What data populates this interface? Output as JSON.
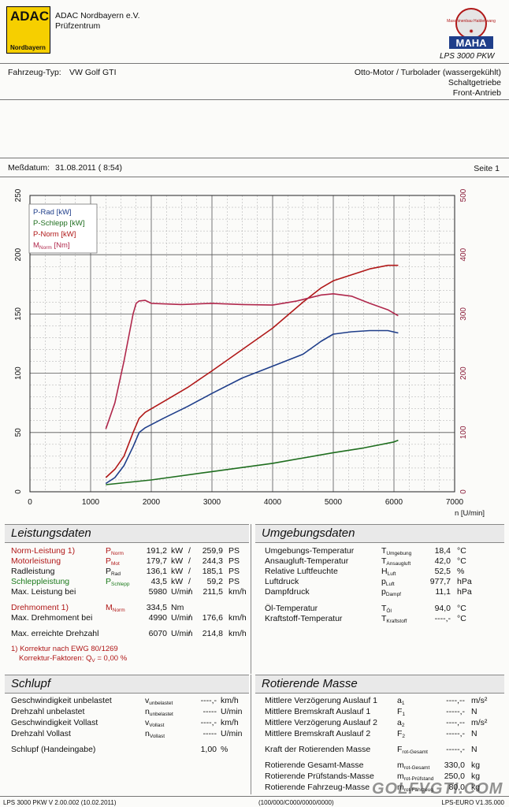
{
  "header": {
    "logo_text": "ADAC",
    "logo_sub": "Nordbayern",
    "org_name": "ADAC Nordbayern e.V.",
    "org_sub": "Prüfzentrum",
    "maha_text": "MAHA",
    "maha_ring_text": "Maschinenbau Haldenwang",
    "model": "LPS 3000 PKW"
  },
  "vehicle": {
    "label": "Fahrzeug-Typ:",
    "value": "VW Golf GTI",
    "engine": "Otto-Motor / Turbolader (wassergekühlt)",
    "gearbox": "Schaltgetriebe",
    "drive": "Front-Antrieb"
  },
  "measure": {
    "date_label": "Meßdatum:",
    "date_value": "31.08.2011 ( 8:54)",
    "page": "Seite 1"
  },
  "chart_data": {
    "type": "line",
    "xlabel": "n [U/min]",
    "xlim": [
      0,
      7000
    ],
    "x_ticks": [
      "0",
      "1000",
      "2000",
      "3000",
      "4000",
      "5000",
      "6000",
      "7000"
    ],
    "ylim_left": [
      0,
      250
    ],
    "y_ticks_left": [
      "0",
      "50",
      "100",
      "150",
      "200",
      "250"
    ],
    "ylim_right": [
      0,
      500
    ],
    "y_ticks_right": [
      "0",
      "100",
      "200",
      "300",
      "400",
      "500"
    ],
    "legend": [
      "P-Rad [kW]",
      "P-Schlepp [kW]",
      "P-Norm [kW]",
      "M"
    ],
    "legend_norm_sub": "Norm",
    "legend_unit": "[Nm]",
    "series": [
      {
        "name": "P-Rad [kW]",
        "color": "#1f3e8a",
        "axis": "left",
        "x": [
          1250,
          1400,
          1550,
          1700,
          1800,
          1900,
          2200,
          2600,
          3000,
          3500,
          4000,
          4500,
          4800,
          5000,
          5300,
          5600,
          5900,
          6070
        ],
        "y": [
          7,
          12,
          22,
          38,
          50,
          54,
          62,
          72,
          83,
          96,
          106,
          116,
          127,
          133,
          135,
          136,
          136,
          134
        ]
      },
      {
        "name": "P-Schlepp [kW]",
        "color": "#1f6e1f",
        "axis": "left",
        "x": [
          1250,
          2000,
          3000,
          4000,
          5000,
          5500,
          6000,
          6070
        ],
        "y": [
          6,
          10,
          17,
          24,
          33,
          37,
          42,
          43.5
        ]
      },
      {
        "name": "P-Norm [kW]",
        "color": "#b01818",
        "axis": "left",
        "x": [
          1250,
          1400,
          1550,
          1700,
          1800,
          1900,
          2200,
          2600,
          3000,
          3500,
          4000,
          4500,
          4800,
          5000,
          5300,
          5600,
          5900,
          6070
        ],
        "y": [
          12,
          19,
          30,
          50,
          62,
          67,
          76,
          88,
          102,
          120,
          138,
          160,
          172,
          178,
          183,
          188,
          191,
          191
        ]
      },
      {
        "name": "M Norm [Nm]",
        "color": "#b0284c",
        "axis": "right",
        "x": [
          1250,
          1400,
          1550,
          1700,
          1750,
          1800,
          1900,
          2000,
          2500,
          3000,
          3500,
          4000,
          4400,
          4800,
          5000,
          5300,
          5600,
          5900,
          6070
        ],
        "y": [
          106,
          150,
          220,
          300,
          318,
          322,
          323,
          318,
          316,
          318,
          316,
          315,
          322,
          332,
          334,
          330,
          318,
          307,
          297
        ]
      }
    ]
  },
  "leistung": {
    "title": "Leistungsdaten",
    "rows": [
      {
        "label": "Norm-Leistung 1)",
        "sym": "P",
        "sub": "Norm",
        "v1": "191,2",
        "u1": "kW",
        "v2": "259,9",
        "u2": "PS",
        "color": "red"
      },
      {
        "label": "Motorleistung",
        "sym": "P",
        "sub": "Mot",
        "v1": "179,7",
        "u1": "kW",
        "v2": "244,3",
        "u2": "PS",
        "color": "red"
      },
      {
        "label": "Radleistung",
        "sym": "P",
        "sub": "Rad",
        "v1": "136,1",
        "u1": "kW",
        "v2": "185,1",
        "u2": "PS",
        "color": "black"
      },
      {
        "label": "Schleppleistung",
        "sym": "P",
        "sub": "Schlepp",
        "v1": "43,5",
        "u1": "kW",
        "v2": "59,2",
        "u2": "PS",
        "color": "green"
      }
    ],
    "max_label": "Max. Leistung bei",
    "max_v1": "5980",
    "max_u1": "U/min",
    "max_v2": "211,5",
    "max_u2": "km/h",
    "dm_label": "Drehmoment 1)",
    "dm_sym": "M",
    "dm_sub": "Norm",
    "dm_v": "334,5",
    "dm_u": "Nm",
    "maxdm_label": "Max. Drehmoment bei",
    "maxdm_v1": "4990",
    "maxdm_u1": "U/min",
    "maxdm_v2": "176,6",
    "maxdm_u2": "km/h",
    "maxdz_label": "Max. erreichte Drehzahl",
    "maxdz_v1": "6070",
    "maxdz_u1": "U/min",
    "maxdz_v2": "214,8",
    "maxdz_u2": "km/h",
    "note1": "1) Korrektur nach EWG 80/1269",
    "note2_pre": "Korrektur-Faktoren: Q",
    "note2_sub": "V",
    "note2_post": " =    0,00 %"
  },
  "umgebung": {
    "title": "Umgebungsdaten",
    "rows": [
      {
        "label": "Umgebungs-Temperatur",
        "sym": "T",
        "sub": "Umgebung",
        "val": "18,4",
        "unit": "°C"
      },
      {
        "label": "Ansaugluft-Temperatur",
        "sym": "T",
        "sub": "Ansaugluft",
        "val": "42,0",
        "unit": "°C"
      },
      {
        "label": "Relative Luftfeuchte",
        "sym": "H",
        "sub": "Luft",
        "val": "52,5",
        "unit": "%"
      },
      {
        "label": "Luftdruck",
        "sym": "p",
        "sub": "Luft",
        "val": "977,7",
        "unit": "hPa"
      },
      {
        "label": "Dampfdruck",
        "sym": "p",
        "sub": "Dampf",
        "val": "11,1",
        "unit": "hPa"
      },
      {
        "label": "Öl-Temperatur",
        "sym": "T",
        "sub": "Öl",
        "val": "94,0",
        "unit": "°C"
      },
      {
        "label": "Kraftstoff-Temperatur",
        "sym": "T",
        "sub": "Kraftstoff",
        "val": "----,-",
        "unit": "°C"
      }
    ]
  },
  "schlupf": {
    "title": "Schlupf",
    "rows": [
      {
        "label": "Geschwindigkeit unbelastet",
        "sym": "v",
        "sub": "unbelastet",
        "val": "----,-",
        "unit": "km/h"
      },
      {
        "label": "Drehzahl unbelastet",
        "sym": "n",
        "sub": "unbelastet",
        "val": "-----",
        "unit": "U/min"
      },
      {
        "label": "Geschwindigkeit Vollast",
        "sym": "v",
        "sub": "Vollast",
        "val": "----,-",
        "unit": "km/h"
      },
      {
        "label": "Drehzahl Vollast",
        "sym": "n",
        "sub": "Vollast",
        "val": "-----",
        "unit": "U/min"
      }
    ],
    "hand_label": "Schlupf (Handeingabe)",
    "hand_val": "1,00",
    "hand_unit": "%"
  },
  "masse": {
    "title": "Rotierende Masse",
    "rows": [
      {
        "label": "Mittlere Verzögerung Auslauf 1",
        "sym": "a",
        "sub": "1",
        "val": "----,--",
        "unit": "m/s²"
      },
      {
        "label": "Mittlere Bremskraft Auslauf 1",
        "sym": "F",
        "sub": "1",
        "val": "-----,-",
        "unit": "N"
      },
      {
        "label": "Mittlere Verzögerung Auslauf 2",
        "sym": "a",
        "sub": "2",
        "val": "----,--",
        "unit": "m/s²"
      },
      {
        "label": "Mittlere Bremskraft Auslauf 2",
        "sym": "F",
        "sub": "2",
        "val": "-----,-",
        "unit": "N"
      },
      {
        "label": "Kraft der Rotierenden Masse",
        "sym": "F",
        "sub": "rot-Gesamt",
        "val": "-----,-",
        "unit": "N"
      },
      {
        "label": "Rotierende Gesamt-Masse",
        "sym": "m",
        "sub": "rot-Gesamt",
        "val": "330,0",
        "unit": "kg"
      },
      {
        "label": "Rotierende Prüfstands-Masse",
        "sym": "m",
        "sub": "rot-Prüfstand",
        "val": "250,0",
        "unit": "kg"
      },
      {
        "label": "Rotierende Fahrzeug-Masse",
        "sym": "m",
        "sub": "rot-Fahrzeug",
        "val": "80,0",
        "unit": "kg"
      }
    ]
  },
  "footer": {
    "left": "LPS 3000 PKW V 2.00.002 (10.02.2011)",
    "mid": "(100/000/C000/0000/0000)",
    "right": "LPS-EURO V1.35.000",
    "watermark": "GOLFVGTI.COM"
  }
}
